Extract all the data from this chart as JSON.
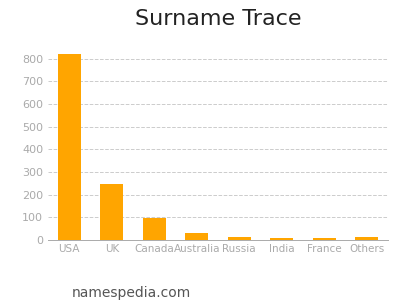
{
  "title": "Surname Trace",
  "categories": [
    "USA",
    "UK",
    "Canada",
    "Australia",
    "Russia",
    "India",
    "France",
    "Others"
  ],
  "values": [
    820,
    245,
    97,
    30,
    13,
    10,
    8,
    15
  ],
  "bar_color": "#FFA500",
  "background_color": "#ffffff",
  "ylim": [
    0,
    900
  ],
  "yticks": [
    0,
    100,
    200,
    300,
    400,
    500,
    600,
    700,
    800
  ],
  "grid_color": "#cccccc",
  "title_fontsize": 16,
  "tick_label_color": "#aaaaaa",
  "watermark": "namespedia.com",
  "watermark_fontsize": 10,
  "watermark_color": "#555555"
}
